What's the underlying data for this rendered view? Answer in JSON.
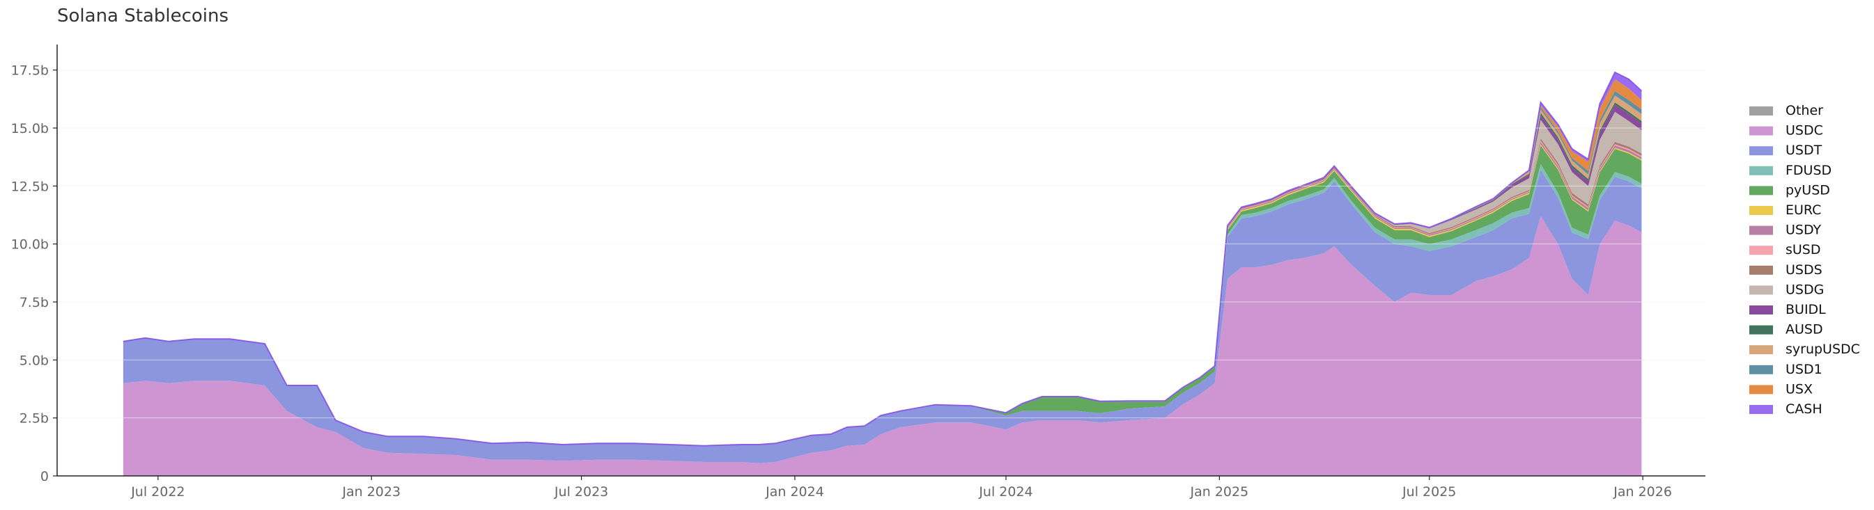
{
  "chart_data": {
    "type": "area",
    "stacked": true,
    "title": "Solana Stablecoins",
    "xlabel": "",
    "ylabel": "",
    "x_ticks": [
      {
        "date": "2022-07-01",
        "label": "Jul 2022"
      },
      {
        "date": "2023-01-01",
        "label": "Jan 2023"
      },
      {
        "date": "2023-07-01",
        "label": "Jul 2023"
      },
      {
        "date": "2024-01-01",
        "label": "Jan 2024"
      },
      {
        "date": "2024-07-01",
        "label": "Jul 2024"
      },
      {
        "date": "2025-01-01",
        "label": "Jan 2025"
      },
      {
        "date": "2025-07-01",
        "label": "Jul 2025"
      },
      {
        "date": "2026-01-01",
        "label": "Jan 2026"
      }
    ],
    "xlim": [
      "2022-04-05",
      "2026-02-24"
    ],
    "ylim": [
      0,
      18.6
    ],
    "y_unit": "b",
    "y_ticks": [
      {
        "value": 0,
        "label": "0"
      },
      {
        "value": 2.5,
        "label": "2.5b"
      },
      {
        "value": 5,
        "label": "5.0b"
      },
      {
        "value": 7.5,
        "label": "7.5b"
      },
      {
        "value": 10,
        "label": "10.0b"
      },
      {
        "value": 12.5,
        "label": "12.5b"
      },
      {
        "value": 15,
        "label": "15.0b"
      },
      {
        "value": 17.5,
        "label": "17.5b"
      }
    ],
    "grid": true,
    "legend_position": "right",
    "dates": [
      "2022-06-01",
      "2022-06-20",
      "2022-07-10",
      "2022-08-01",
      "2022-09-01",
      "2022-10-01",
      "2022-10-20",
      "2022-11-15",
      "2022-12-01",
      "2022-12-25",
      "2023-01-15",
      "2023-02-15",
      "2023-03-15",
      "2023-04-15",
      "2023-05-15",
      "2023-06-15",
      "2023-07-15",
      "2023-08-15",
      "2023-09-15",
      "2023-10-15",
      "2023-11-15",
      "2023-12-01",
      "2023-12-15",
      "2024-01-15",
      "2024-02-01",
      "2024-02-15",
      "2024-03-01",
      "2024-03-15",
      "2024-04-01",
      "2024-05-01",
      "2024-06-01",
      "2024-07-01",
      "2024-07-15",
      "2024-08-01",
      "2024-09-01",
      "2024-09-20",
      "2024-10-15",
      "2024-11-15",
      "2024-12-01",
      "2024-12-15",
      "2024-12-28",
      "2025-01-08",
      "2025-01-20",
      "2025-02-01",
      "2025-02-15",
      "2025-03-01",
      "2025-03-15",
      "2025-04-01",
      "2025-04-10",
      "2025-04-25",
      "2025-05-15",
      "2025-06-01",
      "2025-06-15",
      "2025-07-01",
      "2025-07-20",
      "2025-08-10",
      "2025-08-25",
      "2025-09-10",
      "2025-09-25",
      "2025-10-05",
      "2025-10-20",
      "2025-11-01",
      "2025-11-15",
      "2025-11-25",
      "2025-12-08",
      "2025-12-20",
      "2025-12-31"
    ],
    "series": [
      {
        "name": "Other",
        "color": "#a0a0a0",
        "values": [
          0,
          0,
          0,
          0,
          0,
          0,
          0,
          0,
          0,
          0,
          0,
          0,
          0,
          0,
          0,
          0,
          0,
          0,
          0,
          0,
          0,
          0,
          0,
          0,
          0,
          0,
          0,
          0,
          0,
          0,
          0,
          0,
          0,
          0,
          0,
          0,
          0,
          0,
          0,
          0,
          0,
          0,
          0,
          0,
          0,
          0,
          0,
          0,
          0,
          0,
          0,
          0,
          0,
          0,
          0,
          0,
          0,
          0,
          0,
          0,
          0,
          0,
          0,
          0,
          0,
          0,
          0
        ]
      },
      {
        "name": "USDC",
        "color": "#cf94d2",
        "values": [
          4.0,
          4.1,
          4.0,
          4.1,
          4.1,
          3.9,
          2.8,
          2.1,
          1.9,
          1.2,
          1.0,
          0.95,
          0.9,
          0.7,
          0.7,
          0.65,
          0.7,
          0.7,
          0.65,
          0.6,
          0.6,
          0.55,
          0.6,
          1.0,
          1.1,
          1.3,
          1.35,
          1.8,
          2.1,
          2.3,
          2.3,
          2.0,
          2.3,
          2.4,
          2.4,
          2.3,
          2.4,
          2.5,
          3.1,
          3.5,
          4.0,
          8.5,
          9.0,
          9.0,
          9.1,
          9.3,
          9.4,
          9.6,
          9.9,
          9.1,
          8.2,
          7.5,
          7.9,
          7.8,
          7.8,
          8.4,
          8.6,
          8.9,
          9.4,
          11.2,
          10.0,
          8.5,
          7.8,
          10.0,
          11.0,
          10.8,
          10.5
        ]
      },
      {
        "name": "USDT",
        "color": "#8b96de",
        "values": [
          1.8,
          1.85,
          1.8,
          1.8,
          1.8,
          1.8,
          1.1,
          1.8,
          0.5,
          0.7,
          0.7,
          0.75,
          0.7,
          0.7,
          0.75,
          0.7,
          0.7,
          0.7,
          0.7,
          0.7,
          0.75,
          0.8,
          0.8,
          0.75,
          0.7,
          0.8,
          0.8,
          0.8,
          0.7,
          0.75,
          0.7,
          0.6,
          0.5,
          0.4,
          0.4,
          0.4,
          0.5,
          0.5,
          0.5,
          0.5,
          0.5,
          1.8,
          2.1,
          2.2,
          2.3,
          2.4,
          2.5,
          2.6,
          2.8,
          2.6,
          2.3,
          2.5,
          2.0,
          1.9,
          2.1,
          1.9,
          2.0,
          2.2,
          1.9,
          2.0,
          2.0,
          2.0,
          2.4,
          1.9,
          1.9,
          1.9,
          1.9
        ]
      },
      {
        "name": "FDUSD",
        "color": "#7fbfb8",
        "values": [
          0,
          0,
          0,
          0,
          0,
          0,
          0,
          0,
          0,
          0,
          0,
          0,
          0,
          0,
          0,
          0,
          0,
          0,
          0,
          0,
          0,
          0,
          0,
          0,
          0,
          0,
          0,
          0,
          0,
          0,
          0,
          0,
          0,
          0,
          0,
          0,
          0,
          0,
          0,
          0,
          0,
          0.1,
          0.15,
          0.15,
          0.15,
          0.15,
          0.15,
          0.15,
          0.15,
          0.15,
          0.2,
          0.2,
          0.3,
          0.3,
          0.3,
          0.3,
          0.3,
          0.25,
          0.25,
          0.25,
          0.2,
          0.2,
          0.2,
          0.2,
          0.2,
          0.2,
          0.2
        ]
      },
      {
        "name": "pyUSD",
        "color": "#62a85e",
        "values": [
          0,
          0,
          0,
          0,
          0,
          0,
          0,
          0,
          0,
          0,
          0,
          0,
          0,
          0,
          0,
          0,
          0,
          0,
          0,
          0,
          0,
          0,
          0,
          0,
          0,
          0,
          0,
          0,
          0,
          0,
          0,
          0.1,
          0.3,
          0.6,
          0.6,
          0.5,
          0.3,
          0.2,
          0.2,
          0.2,
          0.2,
          0.2,
          0.15,
          0.2,
          0.2,
          0.25,
          0.3,
          0.3,
          0.3,
          0.4,
          0.4,
          0.4,
          0.4,
          0.3,
          0.35,
          0.4,
          0.45,
          0.5,
          0.6,
          0.8,
          1.0,
          1.2,
          1.0,
          1.0,
          1.0,
          1.0,
          1.0
        ]
      },
      {
        "name": "EURC",
        "color": "#ecc94b",
        "values": [
          0,
          0,
          0,
          0,
          0,
          0,
          0,
          0,
          0,
          0,
          0,
          0,
          0,
          0,
          0,
          0,
          0,
          0,
          0,
          0,
          0,
          0,
          0,
          0,
          0,
          0,
          0,
          0,
          0,
          0,
          0,
          0,
          0,
          0,
          0,
          0,
          0,
          0,
          0,
          0,
          0,
          0.05,
          0.05,
          0.05,
          0.05,
          0.05,
          0.05,
          0.05,
          0.05,
          0.05,
          0.05,
          0.05,
          0.05,
          0.05,
          0.05,
          0.05,
          0.05,
          0.05,
          0.05,
          0.05,
          0.05,
          0.05,
          0.05,
          0.05,
          0.05,
          0.05,
          0.05
        ]
      },
      {
        "name": "USDY",
        "color": "#b97ea3",
        "values": [
          0,
          0,
          0,
          0,
          0,
          0,
          0,
          0,
          0,
          0,
          0,
          0,
          0,
          0,
          0,
          0,
          0,
          0,
          0,
          0,
          0,
          0,
          0,
          0,
          0,
          0,
          0,
          0,
          0,
          0.02,
          0.02,
          0.02,
          0.02,
          0.02,
          0.02,
          0.02,
          0.03,
          0.03,
          0.03,
          0.03,
          0.04,
          0.05,
          0.05,
          0.05,
          0.05,
          0.05,
          0.05,
          0.05,
          0.05,
          0.05,
          0.05,
          0.05,
          0.05,
          0.05,
          0.05,
          0.05,
          0.05,
          0.05,
          0.05,
          0.1,
          0.1,
          0.1,
          0.1,
          0.1,
          0.1,
          0.1,
          0.1
        ]
      },
      {
        "name": "sUSD",
        "color": "#f5a3ad",
        "values": [
          0,
          0,
          0,
          0,
          0,
          0,
          0,
          0,
          0,
          0,
          0,
          0,
          0,
          0,
          0,
          0,
          0,
          0,
          0,
          0,
          0,
          0,
          0,
          0,
          0,
          0,
          0,
          0,
          0,
          0,
          0,
          0,
          0,
          0,
          0,
          0,
          0,
          0,
          0,
          0,
          0,
          0.02,
          0.02,
          0.02,
          0.02,
          0.02,
          0.02,
          0.02,
          0.02,
          0.02,
          0.02,
          0.02,
          0.02,
          0.02,
          0.03,
          0.03,
          0.03,
          0.03,
          0.03,
          0.05,
          0.05,
          0.05,
          0.05,
          0.05,
          0.05,
          0.05,
          0.05
        ]
      },
      {
        "name": "USDS",
        "color": "#a67c6a",
        "values": [
          0,
          0,
          0,
          0,
          0,
          0,
          0,
          0,
          0,
          0,
          0,
          0,
          0,
          0,
          0,
          0,
          0,
          0,
          0,
          0,
          0,
          0,
          0,
          0,
          0,
          0,
          0,
          0,
          0,
          0,
          0,
          0,
          0,
          0,
          0,
          0,
          0,
          0,
          0,
          0,
          0,
          0.03,
          0.03,
          0.03,
          0.03,
          0.03,
          0.03,
          0.05,
          0.05,
          0.05,
          0.05,
          0.05,
          0.05,
          0.05,
          0.05,
          0.05,
          0.05,
          0.05,
          0.05,
          0.1,
          0.1,
          0.1,
          0.1,
          0.1,
          0.1,
          0.1,
          0.1
        ]
      },
      {
        "name": "USDG",
        "color": "#c4b7b0",
        "values": [
          0,
          0,
          0,
          0,
          0,
          0,
          0,
          0,
          0,
          0,
          0,
          0,
          0,
          0,
          0,
          0,
          0,
          0,
          0,
          0,
          0,
          0,
          0,
          0,
          0,
          0,
          0,
          0,
          0,
          0,
          0,
          0,
          0,
          0,
          0,
          0,
          0,
          0,
          0,
          0,
          0,
          0,
          0,
          0,
          0,
          0,
          0,
          0,
          0,
          0,
          0.02,
          0.05,
          0.1,
          0.2,
          0.3,
          0.3,
          0.3,
          0.4,
          0.5,
          0.8,
          0.8,
          0.9,
          0.8,
          1.1,
          1.3,
          1.1,
          1.0
        ]
      },
      {
        "name": "BUIDL",
        "color": "#8a4a9e",
        "values": [
          0,
          0,
          0,
          0,
          0,
          0,
          0,
          0,
          0,
          0,
          0,
          0,
          0,
          0,
          0,
          0,
          0,
          0,
          0,
          0,
          0,
          0,
          0,
          0,
          0,
          0,
          0,
          0,
          0,
          0,
          0,
          0,
          0,
          0,
          0,
          0,
          0,
          0,
          0,
          0,
          0,
          0.02,
          0.02,
          0.02,
          0.02,
          0.02,
          0.02,
          0.02,
          0.02,
          0.02,
          0.02,
          0.02,
          0.02,
          0.02,
          0.02,
          0.05,
          0.05,
          0.1,
          0.15,
          0.2,
          0.2,
          0.2,
          0.2,
          0.3,
          0.3,
          0.3,
          0.3
        ]
      },
      {
        "name": "AUSD",
        "color": "#41735e",
        "values": [
          0,
          0,
          0,
          0,
          0,
          0,
          0,
          0,
          0,
          0,
          0,
          0,
          0,
          0,
          0,
          0,
          0,
          0,
          0,
          0,
          0,
          0,
          0,
          0,
          0,
          0,
          0,
          0,
          0,
          0,
          0,
          0,
          0,
          0,
          0,
          0,
          0,
          0,
          0,
          0,
          0,
          0.02,
          0.02,
          0.02,
          0.02,
          0.02,
          0.02,
          0.02,
          0.02,
          0.02,
          0.02,
          0.02,
          0.02,
          0.02,
          0.02,
          0.02,
          0.02,
          0.05,
          0.05,
          0.1,
          0.1,
          0.1,
          0.1,
          0.1,
          0.1,
          0.1,
          0.1
        ]
      },
      {
        "name": "syrupUSDC",
        "color": "#d8a57b",
        "values": [
          0,
          0,
          0,
          0,
          0,
          0,
          0,
          0,
          0,
          0,
          0,
          0,
          0,
          0,
          0,
          0,
          0,
          0,
          0,
          0,
          0,
          0,
          0,
          0,
          0,
          0,
          0,
          0,
          0,
          0,
          0,
          0,
          0,
          0,
          0,
          0,
          0,
          0,
          0,
          0,
          0,
          0,
          0,
          0,
          0,
          0,
          0,
          0,
          0,
          0,
          0,
          0,
          0,
          0,
          0.02,
          0.05,
          0.05,
          0.05,
          0.1,
          0.15,
          0.15,
          0.2,
          0.2,
          0.3,
          0.3,
          0.3,
          0.3
        ]
      },
      {
        "name": "USD1",
        "color": "#5f8fa3",
        "values": [
          0,
          0,
          0,
          0,
          0,
          0,
          0,
          0,
          0,
          0,
          0,
          0,
          0,
          0,
          0,
          0,
          0,
          0,
          0,
          0,
          0,
          0,
          0,
          0,
          0,
          0,
          0,
          0,
          0,
          0,
          0,
          0,
          0,
          0,
          0,
          0,
          0,
          0,
          0,
          0,
          0,
          0,
          0,
          0,
          0,
          0,
          0,
          0,
          0,
          0,
          0,
          0,
          0,
          0,
          0,
          0,
          0,
          0,
          0.05,
          0.1,
          0.1,
          0.1,
          0.15,
          0.15,
          0.2,
          0.2,
          0.2
        ]
      },
      {
        "name": "USX",
        "color": "#e58a42",
        "values": [
          0,
          0,
          0,
          0,
          0,
          0,
          0,
          0,
          0,
          0,
          0,
          0,
          0,
          0,
          0,
          0,
          0,
          0,
          0,
          0,
          0,
          0,
          0,
          0,
          0,
          0,
          0,
          0,
          0,
          0,
          0,
          0,
          0,
          0,
          0,
          0,
          0,
          0,
          0,
          0,
          0,
          0,
          0,
          0,
          0,
          0,
          0,
          0,
          0,
          0,
          0,
          0,
          0,
          0,
          0,
          0,
          0,
          0,
          0,
          0.1,
          0.2,
          0.3,
          0.4,
          0.5,
          0.5,
          0.5,
          0.4
        ]
      },
      {
        "name": "CASH",
        "color": "#9a6cf0",
        "values": [
          0,
          0,
          0,
          0,
          0,
          0,
          0,
          0,
          0,
          0,
          0,
          0,
          0,
          0,
          0,
          0,
          0,
          0,
          0,
          0,
          0,
          0,
          0,
          0,
          0,
          0,
          0,
          0,
          0,
          0,
          0,
          0,
          0,
          0,
          0,
          0,
          0,
          0,
          0,
          0,
          0,
          0,
          0,
          0,
          0,
          0,
          0,
          0,
          0,
          0,
          0,
          0,
          0,
          0,
          0,
          0,
          0,
          0,
          0,
          0.1,
          0.1,
          0.1,
          0.1,
          0.2,
          0.3,
          0.4,
          0.4
        ]
      }
    ]
  }
}
